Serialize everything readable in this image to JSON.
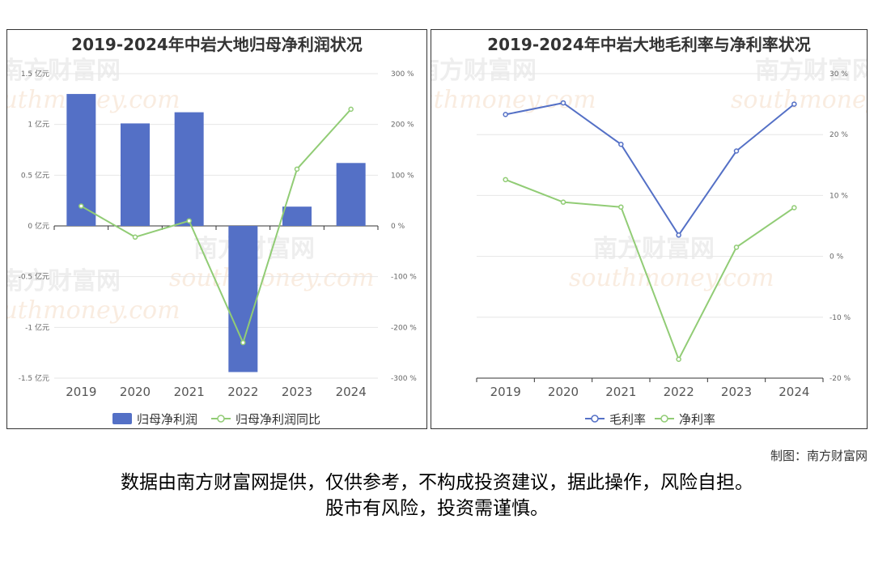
{
  "chart_data": [
    {
      "type": "bar",
      "title": "2019-2024年中岩大地归母净利润状况",
      "categories": [
        "2019",
        "2020",
        "2021",
        "2022",
        "2023",
        "2024"
      ],
      "series": [
        {
          "name": "归母净利润",
          "type": "bar",
          "axis": "left",
          "values": [
            1.3,
            1.01,
            1.12,
            -1.44,
            0.19,
            0.62
          ],
          "color": "#5470c6"
        },
        {
          "name": "归母净利润同比",
          "type": "line",
          "axis": "right",
          "values": [
            39,
            -22,
            10,
            -230,
            112,
            230
          ],
          "color": "#91cc75"
        }
      ],
      "y_left": {
        "range": [
          -1.5,
          1.5
        ],
        "ticks": [
          "1.5 亿元",
          "1 亿元",
          "0.5 亿元",
          "0 亿元",
          "-0.5 亿元",
          "-1 亿元",
          "-1.5 亿元"
        ]
      },
      "y_right": {
        "range": [
          -300,
          300
        ],
        "ticks": [
          "300 %",
          "200 %",
          "100 %",
          "0 %",
          "-100 %",
          "-200 %",
          "-300 %"
        ]
      },
      "grid": true,
      "legend": "bottom"
    },
    {
      "type": "line",
      "title": "2019-2024年中岩大地毛利率与净利率状况",
      "categories": [
        "2019",
        "2020",
        "2021",
        "2022",
        "2023",
        "2024"
      ],
      "series": [
        {
          "name": "毛利率",
          "values": [
            23.3,
            25.2,
            18.4,
            3.5,
            17.3,
            25.0
          ],
          "color": "#5470c6"
        },
        {
          "name": "净利率",
          "values": [
            12.6,
            8.9,
            8.1,
            -16.9,
            1.5,
            8.0
          ],
          "color": "#91cc75"
        }
      ],
      "y_right": {
        "range": [
          -20,
          30
        ],
        "ticks": [
          "30 %",
          "20 %",
          "10 %",
          "0 %",
          "-10 %",
          "-20 %"
        ]
      },
      "grid": true,
      "legend": "bottom"
    }
  ],
  "watermark": {
    "cn": "南方财富网",
    "en": "southmoney.com"
  },
  "credit": "制图：南方财富网",
  "disclaimer": {
    "line1": "数据由南方财富网提供，仅供参考，不构成投资建议，据此操作，风险自担。",
    "line2": "股市有风险，投资需谨慎。"
  }
}
